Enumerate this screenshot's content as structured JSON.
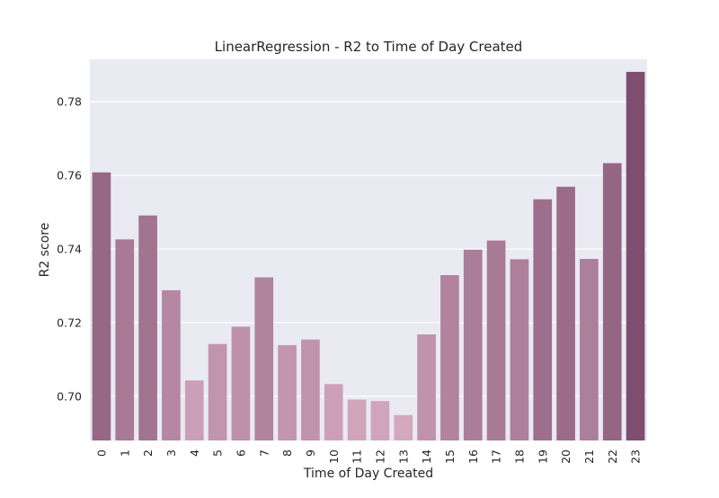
{
  "chart_data": {
    "type": "bar",
    "title": "LinearRegression - R2 to Time of Day Created",
    "xlabel": "Time of Day Created",
    "ylabel": "R2 score",
    "categories": [
      "0",
      "1",
      "2",
      "3",
      "4",
      "5",
      "6",
      "7",
      "8",
      "9",
      "10",
      "11",
      "12",
      "13",
      "14",
      "15",
      "16",
      "17",
      "18",
      "19",
      "20",
      "21",
      "22",
      "23"
    ],
    "values": [
      0.7608,
      0.7426,
      0.7491,
      0.7288,
      0.7043,
      0.7142,
      0.7189,
      0.7323,
      0.7139,
      0.7154,
      0.7033,
      0.6991,
      0.6987,
      0.6949,
      0.7168,
      0.7329,
      0.7398,
      0.7423,
      0.7372,
      0.7535,
      0.7569,
      0.7373,
      0.7633,
      0.7881
    ],
    "ylim": [
      0.688,
      0.7915
    ],
    "yticks": [
      "0.70",
      "0.72",
      "0.74",
      "0.76",
      "0.78"
    ],
    "grid": true,
    "legend": "none",
    "colors": {
      "background": "#eaeaf2",
      "grid": "#ffffff",
      "bar_low": "#d4a8bf",
      "bar_high": "#7d4e6e"
    }
  }
}
